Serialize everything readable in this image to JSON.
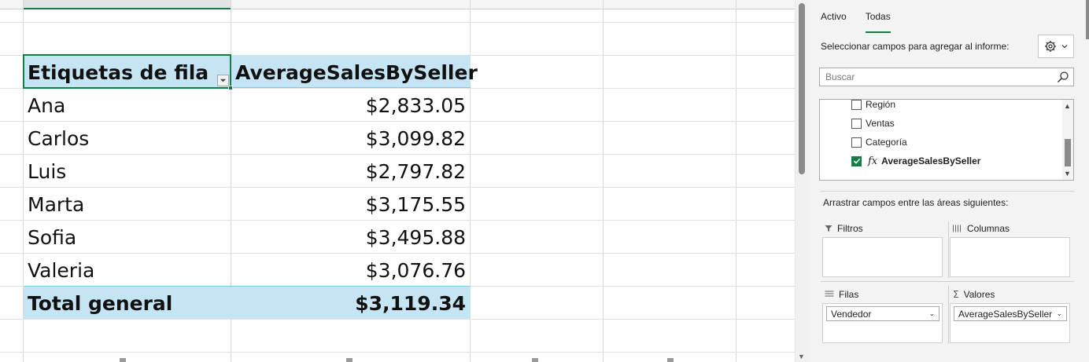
{
  "pivot": {
    "header": {
      "row_label": "Etiquetas de fila",
      "value_label": "AverageSalesBySeller"
    },
    "rows": [
      {
        "name": "Ana",
        "value": "$2,833.05"
      },
      {
        "name": "Carlos",
        "value": "$3,099.82"
      },
      {
        "name": "Luis",
        "value": "$2,797.82"
      },
      {
        "name": "Marta",
        "value": "$3,175.55"
      },
      {
        "name": "Sofia",
        "value": "$3,495.88"
      },
      {
        "name": "Valeria",
        "value": "$3,076.76"
      }
    ],
    "total": {
      "name": "Total general",
      "value": "$3,119.34"
    }
  },
  "pane": {
    "tabs": [
      "Activo",
      "Todas"
    ],
    "active_tab": "Todas",
    "choose_label": "Seleccionar campos para agregar al informe:",
    "search_placeholder": "Buscar",
    "fields": [
      {
        "label": "Región",
        "checked": false
      },
      {
        "label": "Ventas",
        "checked": false
      },
      {
        "label": "Categoría",
        "checked": false
      },
      {
        "label": "AverageSalesBySeller",
        "checked": true,
        "fx": "fx"
      }
    ],
    "drag_label": "Arrastrar campos entre las áreas siguientes:",
    "areas": {
      "filters": {
        "title": "Filtros",
        "icon": "filter-icon"
      },
      "columns": {
        "title": "Columnas",
        "icon": "columns-icon"
      },
      "rows": {
        "title": "Filas",
        "icon": "rows-icon",
        "item": "Vendedor"
      },
      "values": {
        "title": "Valores",
        "icon": "sigma-icon",
        "symbol": "Σ",
        "item": "AverageSalesBySeller"
      }
    }
  },
  "colors": {
    "accent": "#137e43",
    "pivot_header_bg": "#c5e5f4"
  }
}
